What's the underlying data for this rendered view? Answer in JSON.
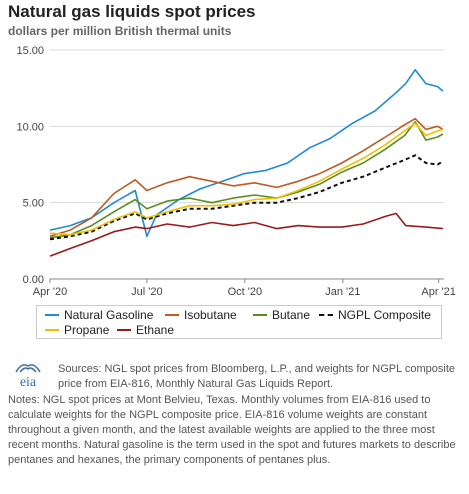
{
  "header": {
    "title": "Natural gas liquids spot prices",
    "subtitle": "dollars per million British thermal units"
  },
  "colors": {
    "natural_gasoline": "#1f8ad6",
    "isobutane": "#c05a1e",
    "butane": "#5a8f1f",
    "ngpl_composite": "#111111",
    "propane": "#f0c000",
    "ethane": "#9b1b1b",
    "grid": "#d9d9d9",
    "logo": "#3a6ea5"
  },
  "chart_data": {
    "type": "line",
    "ylim": [
      0,
      15
    ],
    "yticks": [
      "0.00",
      "5.00",
      "10.00",
      "15.00"
    ],
    "xlim": [
      "2020-04-01",
      "2021-04-06"
    ],
    "xticks": [
      {
        "date": "2020-04-01",
        "label": "Apr '20"
      },
      {
        "date": "2020-07-01",
        "label": "Jul '20"
      },
      {
        "date": "2020-10-01",
        "label": "Oct '20"
      },
      {
        "date": "2021-01-01",
        "label": "Jan '21"
      },
      {
        "date": "2021-04-01",
        "label": "Apr '21"
      }
    ],
    "grid": "horizontal",
    "legend": "bottom",
    "series": [
      {
        "name": "Natural Gasoline",
        "key": "natural_gasoline",
        "dashed": false,
        "x": [
          "2020-04-01",
          "2020-04-20",
          "2020-05-10",
          "2020-05-31",
          "2020-06-20",
          "2020-07-01",
          "2020-07-10",
          "2020-07-31",
          "2020-08-20",
          "2020-09-10",
          "2020-09-30",
          "2020-10-20",
          "2020-11-10",
          "2020-12-01",
          "2020-12-20",
          "2021-01-10",
          "2021-01-31",
          "2021-02-20",
          "2021-03-01",
          "2021-03-10",
          "2021-03-20",
          "2021-03-31",
          "2021-04-05"
        ],
        "y": [
          3.2,
          3.5,
          4.0,
          5.0,
          5.8,
          2.8,
          4.2,
          5.2,
          5.9,
          6.4,
          6.9,
          7.1,
          7.6,
          8.6,
          9.2,
          10.2,
          11.0,
          12.2,
          12.8,
          13.7,
          12.8,
          12.6,
          12.3
        ]
      },
      {
        "name": "Isobutane",
        "key": "isobutane",
        "dashed": false,
        "x": [
          "2020-04-01",
          "2020-04-20",
          "2020-05-10",
          "2020-05-31",
          "2020-06-20",
          "2020-07-01",
          "2020-07-20",
          "2020-08-10",
          "2020-08-31",
          "2020-09-20",
          "2020-10-10",
          "2020-10-31",
          "2020-11-20",
          "2020-12-10",
          "2020-12-31",
          "2021-01-20",
          "2021-02-10",
          "2021-02-28",
          "2021-03-10",
          "2021-03-20",
          "2021-03-31",
          "2021-04-05"
        ],
        "y": [
          2.8,
          3.2,
          4.0,
          5.6,
          6.5,
          5.8,
          6.3,
          6.7,
          6.4,
          6.1,
          6.3,
          6.0,
          6.4,
          6.9,
          7.6,
          8.4,
          9.3,
          10.1,
          10.5,
          9.8,
          10.0,
          9.8
        ]
      },
      {
        "name": "Butane",
        "key": "butane",
        "dashed": false,
        "x": [
          "2020-04-01",
          "2020-04-20",
          "2020-05-10",
          "2020-05-31",
          "2020-06-20",
          "2020-07-01",
          "2020-07-20",
          "2020-08-10",
          "2020-08-31",
          "2020-09-20",
          "2020-10-10",
          "2020-10-31",
          "2020-11-20",
          "2020-12-10",
          "2020-12-31",
          "2021-01-20",
          "2021-02-10",
          "2021-02-28",
          "2021-03-10",
          "2021-03-20",
          "2021-03-31",
          "2021-04-05"
        ],
        "y": [
          2.7,
          2.9,
          3.5,
          4.4,
          5.2,
          4.6,
          5.1,
          5.3,
          5.0,
          5.3,
          5.5,
          5.3,
          5.7,
          6.2,
          7.0,
          7.6,
          8.5,
          9.4,
          10.3,
          9.1,
          9.3,
          9.5
        ]
      },
      {
        "name": "NGPL Composite",
        "key": "ngpl_composite",
        "dashed": true,
        "x": [
          "2020-04-01",
          "2020-04-20",
          "2020-05-10",
          "2020-05-31",
          "2020-06-20",
          "2020-07-01",
          "2020-07-20",
          "2020-08-10",
          "2020-08-31",
          "2020-09-20",
          "2020-10-10",
          "2020-10-31",
          "2020-11-20",
          "2020-12-10",
          "2020-12-31",
          "2021-01-20",
          "2021-02-10",
          "2021-02-28",
          "2021-03-10",
          "2021-03-20",
          "2021-03-31",
          "2021-04-05"
        ],
        "y": [
          2.6,
          2.8,
          3.1,
          3.8,
          4.3,
          3.9,
          4.3,
          4.6,
          4.6,
          4.8,
          5.0,
          5.0,
          5.3,
          5.7,
          6.3,
          6.7,
          7.3,
          7.8,
          8.1,
          7.6,
          7.5,
          7.7
        ]
      },
      {
        "name": "Propane",
        "key": "propane",
        "dashed": false,
        "x": [
          "2020-04-01",
          "2020-04-20",
          "2020-05-10",
          "2020-05-31",
          "2020-06-20",
          "2020-07-01",
          "2020-07-20",
          "2020-08-10",
          "2020-08-31",
          "2020-09-20",
          "2020-10-10",
          "2020-10-31",
          "2020-11-20",
          "2020-12-10",
          "2020-12-31",
          "2021-01-20",
          "2021-02-10",
          "2021-02-28",
          "2021-03-10",
          "2021-03-20",
          "2021-03-31",
          "2021-04-05"
        ],
        "y": [
          3.0,
          2.9,
          3.2,
          3.9,
          4.4,
          4.0,
          4.4,
          4.8,
          4.8,
          4.9,
          5.2,
          5.3,
          5.8,
          6.4,
          7.2,
          7.9,
          8.8,
          9.7,
          10.2,
          9.4,
          9.7,
          9.8
        ]
      },
      {
        "name": "Ethane",
        "key": "ethane",
        "dashed": false,
        "x": [
          "2020-04-01",
          "2020-04-20",
          "2020-05-10",
          "2020-05-31",
          "2020-06-20",
          "2020-07-01",
          "2020-07-20",
          "2020-08-10",
          "2020-08-31",
          "2020-09-20",
          "2020-10-10",
          "2020-10-31",
          "2020-11-20",
          "2020-12-10",
          "2020-12-31",
          "2021-01-20",
          "2021-02-10",
          "2021-02-20",
          "2021-03-01",
          "2021-03-20",
          "2021-04-05"
        ],
        "y": [
          1.5,
          2.0,
          2.5,
          3.1,
          3.4,
          3.3,
          3.6,
          3.4,
          3.7,
          3.5,
          3.7,
          3.3,
          3.5,
          3.4,
          3.4,
          3.6,
          4.1,
          4.3,
          3.5,
          3.4,
          3.3
        ]
      }
    ]
  },
  "legend": {
    "natural_gasoline": "Natural Gasoline",
    "isobutane": "Isobutane",
    "butane": "Butane",
    "ngpl_composite": "NGPL Composite",
    "propane": "Propane",
    "ethane": "Ethane"
  },
  "footer": {
    "logo_text": "eia",
    "sources": "Sources: NGL spot prices from Bloomberg, L.P., and weights for NGPL composite price from EIA-816, Monthly Natural Gas Liquids Report.",
    "notes": "Notes: NGL spot prices at Mont Belvieu, Texas. Monthly volumes from EIA-816 used to calculate weights for the NGPL composite price. EIA-816 volume weights are constant throughout a given month, and the latest available weights are applied to the three most recent months. Natural gasoline is the term used in the spot and futures markets to describe pentanes and hexanes, the primary components of pentanes plus."
  }
}
